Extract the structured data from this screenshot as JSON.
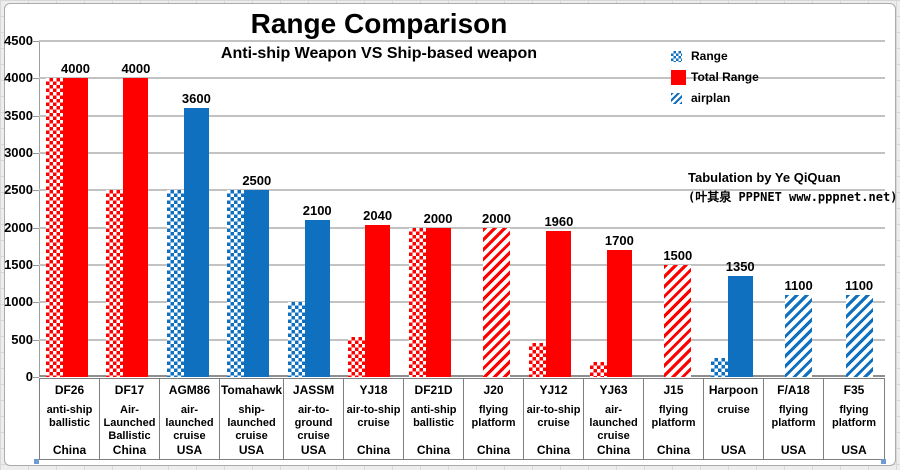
{
  "annotation": {
    "line1": "Tabulation by Ye QiQuan",
    "line2": "(叶其泉 PPPNET www.pppnet.net)"
  },
  "colors": {
    "china": "#FF0000",
    "usa": "#1070C0",
    "gridline": "#C2C2C2"
  },
  "chart_data": {
    "type": "bar",
    "title": "Range Comparison",
    "subtitle": "Anti-ship Weapon VS Ship-based weapon",
    "xlabel": "",
    "ylabel": "",
    "ylim": [
      0,
      4500
    ],
    "yticks": [
      0,
      500,
      1000,
      1500,
      2000,
      2500,
      3000,
      3500,
      4000,
      4500
    ],
    "grid": true,
    "legend_position": "top-right",
    "series": [
      {
        "name": "Range",
        "swatch": "checker",
        "legend_color": "#1070C0"
      },
      {
        "name": "Total Range",
        "swatch": "solid",
        "legend_color": "#FF0000"
      },
      {
        "name": "airplan",
        "swatch": "hatch",
        "legend_color": "#1070C0"
      }
    ],
    "categories": [
      {
        "name": "DF26",
        "type": "anti-ship\nballistic",
        "country": "China",
        "range": 4000,
        "total_range": 4000,
        "airplan": null,
        "label": "4000"
      },
      {
        "name": "DF17",
        "type": "Air-\nLaunched\nBallistic",
        "country": "China",
        "range": 2500,
        "total_range": 4000,
        "airplan": null,
        "label": "4000"
      },
      {
        "name": "AGM86",
        "type": "air-\nlaunched\ncruise",
        "country": "USA",
        "range": 2500,
        "total_range": 3600,
        "airplan": null,
        "label": "3600"
      },
      {
        "name": "Tomahawk",
        "type": "ship-\nlaunched\ncruise",
        "country": "USA",
        "range": 2500,
        "total_range": 2500,
        "airplan": null,
        "label": "2500"
      },
      {
        "name": "JASSM",
        "type": "air-to-\nground\ncruise",
        "country": "USA",
        "range": 1000,
        "total_range": 2100,
        "airplan": null,
        "label": "2100"
      },
      {
        "name": "YJ18",
        "type": "air-to-ship\ncruise",
        "country": "China",
        "range": 540,
        "total_range": 2040,
        "airplan": null,
        "label": "2040"
      },
      {
        "name": "DF21D",
        "type": "anti-ship\nballistic",
        "country": "China",
        "range": 2000,
        "total_range": 2000,
        "airplan": null,
        "label": "2000"
      },
      {
        "name": "J20",
        "type": "flying\nplatform",
        "country": "China",
        "range": null,
        "total_range": null,
        "airplan": 2000,
        "label": "2000"
      },
      {
        "name": "YJ12",
        "type": "air-to-ship\ncruise",
        "country": "China",
        "range": 450,
        "total_range": 1960,
        "airplan": null,
        "label": "1960"
      },
      {
        "name": "YJ63",
        "type": "air-\nlaunched\ncruise",
        "country": "China",
        "range": 200,
        "total_range": 1700,
        "airplan": null,
        "label": "1700"
      },
      {
        "name": "J15",
        "type": "flying\nplatform",
        "country": "China",
        "range": null,
        "total_range": null,
        "airplan": 1500,
        "label": "1500"
      },
      {
        "name": "Harpoon",
        "type": "cruise",
        "country": "USA",
        "range": 250,
        "total_range": 1350,
        "airplan": null,
        "label": "1350"
      },
      {
        "name": "F/A18",
        "type": "flying\nplatform",
        "country": "USA",
        "range": null,
        "total_range": null,
        "airplan": 1100,
        "label": "1100"
      },
      {
        "name": "F35",
        "type": "flying\nplatform",
        "country": "USA",
        "range": null,
        "total_range": null,
        "airplan": 1100,
        "label": "1100"
      }
    ]
  }
}
